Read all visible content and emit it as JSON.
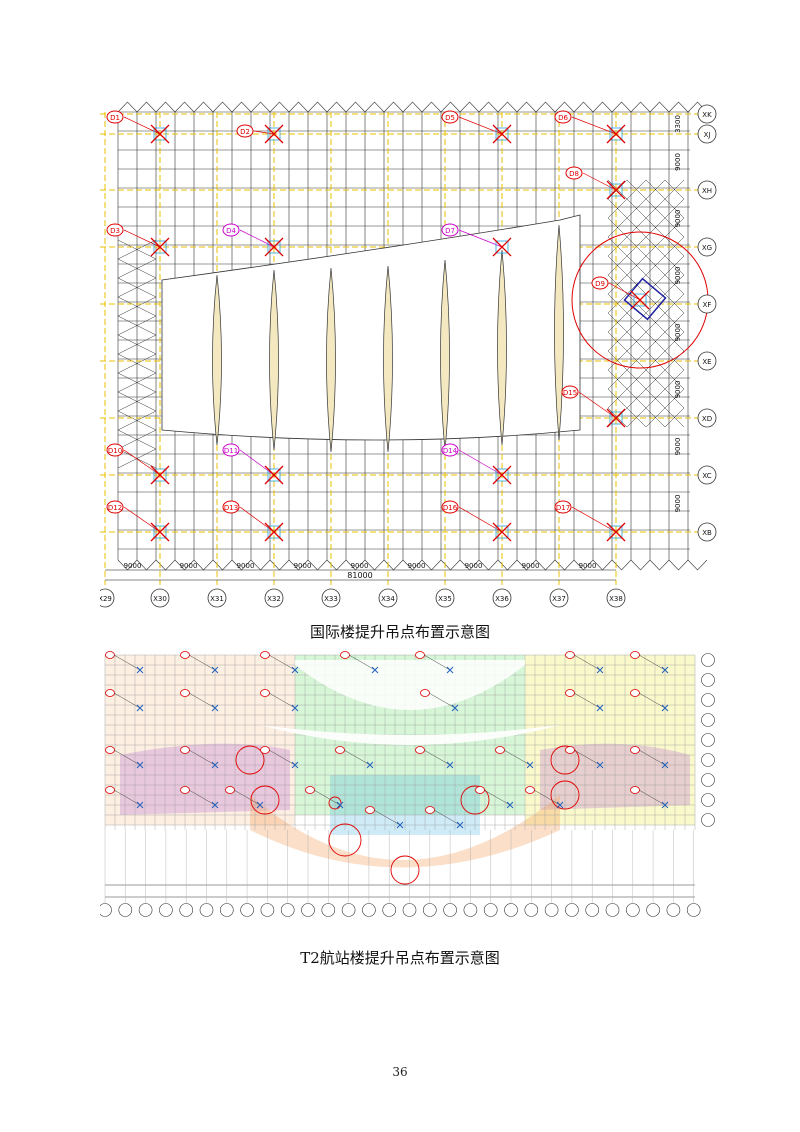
{
  "figures": [
    {
      "caption": "国际楼提升吊点布置示意图",
      "row_axes": [
        "XK",
        "XJ",
        "XH",
        "XG",
        "XF",
        "XE",
        "XD",
        "XC",
        "XB"
      ],
      "col_axes": [
        "X29",
        "X30",
        "X31",
        "X32",
        "X33",
        "X34",
        "X35",
        "X36",
        "X37",
        "X38"
      ],
      "bottom_dims": [
        "9000",
        "9000",
        "9000",
        "9000",
        "9000",
        "9000",
        "9000",
        "9000",
        "9000"
      ],
      "total_dim": "81000",
      "right_dims": [
        "3300",
        "9000",
        "9000",
        "9000",
        "9000",
        "9000",
        "9000",
        "9000"
      ],
      "lift_points": [
        "D1",
        "D2",
        "D5",
        "D6",
        "D8",
        "D3",
        "D4",
        "D7",
        "D9",
        "D15",
        "D10",
        "D11",
        "D14",
        "D12",
        "D13",
        "D16",
        "D17"
      ]
    },
    {
      "caption": "T2航站楼提升吊点布置示意图"
    }
  ],
  "page_number": "36",
  "colors": {
    "grid": "#333333",
    "axis_line": "#e8c000",
    "lift_label": "#e00000",
    "lift_label_alt": "#cc00cc",
    "truss_fill": "#f3e8c0",
    "zone_orange": "#f4a460",
    "zone_green": "#22cc22",
    "zone_yellow": "#e8e000",
    "zone_purple": "#c080d0",
    "zone_cyan": "#40b0e0"
  }
}
